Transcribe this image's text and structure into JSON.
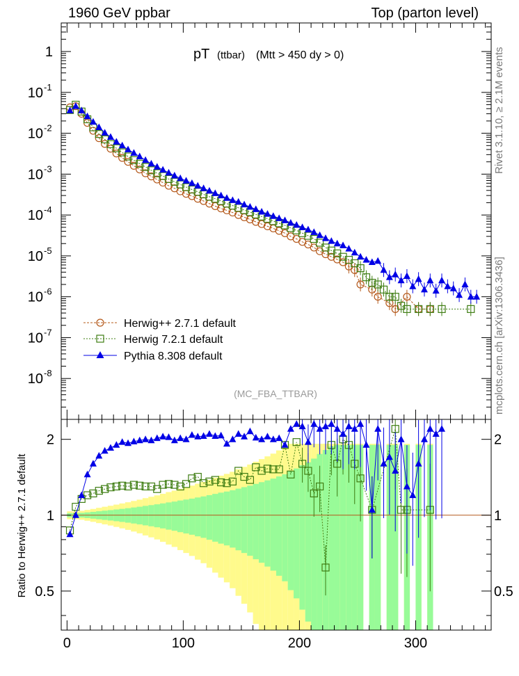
{
  "header": {
    "left": "1960 GeV ppbar",
    "right": "Top (parton level)"
  },
  "plot_title": {
    "main": "pT",
    "small": "(ttbar)",
    "cut": "(Mtt > 450 dy > 0)"
  },
  "analysis_tag": "(MC_FBA_TTBAR)",
  "side_labels": {
    "rivet": "Rivet 3.1.10, ≥ 2.1M events",
    "mcplots": "mcplots.cern.ch [arXiv:1306.3436]"
  },
  "ratio_ylabel": "Ratio to Herwig++ 2.7.1 default",
  "colors": {
    "herwigpp": "#b4581a",
    "herwig7": "#3e7d12",
    "pythia": "#0000e6",
    "band_inner": "#98fb98",
    "band_outer": "#fffa8c"
  },
  "chart_data": [
    {
      "type": "scatter",
      "panel": "main",
      "yscale": "log",
      "xlim": [
        -5,
        365
      ],
      "ylim": [
        1e-09,
        5
      ],
      "ytick_labels": [
        "1",
        "10^-1",
        "10^-2",
        "10^-3",
        "10^-4",
        "10^-5",
        "10^-6",
        "10^-7",
        "10^-8"
      ],
      "legend_placement": "bottom-left",
      "series": [
        {
          "name": "Herwig++ 2.7.1 default",
          "marker": "open-circle",
          "x": [
            2.5,
            7.5,
            12.5,
            17.5,
            22.5,
            27.5,
            32.5,
            37.5,
            42.5,
            47.5,
            52.5,
            57.5,
            62.5,
            67.5,
            72.5,
            77.5,
            82.5,
            87.5,
            92.5,
            97.5,
            102.5,
            107.5,
            112.5,
            117.5,
            122.5,
            127.5,
            132.5,
            137.5,
            142.5,
            147.5,
            152.5,
            157.5,
            162.5,
            167.5,
            172.5,
            177.5,
            182.5,
            187.5,
            192.5,
            197.5,
            202.5,
            207.5,
            212.5,
            217.5,
            222.5,
            227.5,
            232.5,
            237.5,
            242.5,
            247.5,
            252.5,
            262.5,
            267.5,
            277.5,
            282.5,
            292.5,
            302.5,
            312.5
          ],
          "y": [
            0.043,
            0.046,
            0.03,
            0.018,
            0.0115,
            0.0076,
            0.0055,
            0.0042,
            0.0032,
            0.0025,
            0.002,
            0.0016,
            0.0013,
            0.00105,
            0.00088,
            0.00074,
            0.00062,
            0.00052,
            0.00045,
            0.00038,
            0.00033,
            0.00029,
            0.00025,
            0.00022,
            0.00019,
            0.000165,
            0.000145,
            0.00013,
            0.000115,
            0.0001,
            8.8e-05,
            7.8e-05,
            6.8e-05,
            6e-05,
            5.3e-05,
            4.7e-05,
            4.1e-05,
            3.6e-05,
            3e-05,
            2.6e-05,
            2.2e-05,
            1.9e-05,
            1.6e-05,
            1.3e-05,
            1.1e-05,
            9.5e-06,
            8.2e-06,
            7e-06,
            5.5e-06,
            4.5e-06,
            2e-06,
            1.5e-06,
            1e-06,
            7e-07,
            5e-07,
            1e-06,
            5e-07,
            5e-07
          ]
        },
        {
          "name": "Herwig 7.2.1 default",
          "marker": "open-square",
          "x": [
            2.5,
            7.5,
            12.5,
            17.5,
            22.5,
            27.5,
            32.5,
            37.5,
            42.5,
            47.5,
            52.5,
            57.5,
            62.5,
            67.5,
            72.5,
            77.5,
            82.5,
            87.5,
            92.5,
            97.5,
            102.5,
            107.5,
            112.5,
            117.5,
            122.5,
            127.5,
            132.5,
            137.5,
            142.5,
            147.5,
            152.5,
            157.5,
            162.5,
            167.5,
            172.5,
            177.5,
            182.5,
            187.5,
            192.5,
            197.5,
            202.5,
            207.5,
            212.5,
            217.5,
            222.5,
            227.5,
            232.5,
            237.5,
            242.5,
            247.5,
            252.5,
            257.5,
            262.5,
            267.5,
            272.5,
            277.5,
            282.5,
            287.5,
            292.5,
            302.5,
            312.5,
            322.5,
            347.5
          ],
          "y": [
            0.037,
            0.05,
            0.034,
            0.022,
            0.014,
            0.0096,
            0.0071,
            0.0054,
            0.0043,
            0.0034,
            0.0027,
            0.0022,
            0.0018,
            0.0015,
            0.00124,
            0.00105,
            0.0009,
            0.00076,
            0.00065,
            0.00056,
            0.00048,
            0.00042,
            0.00037,
            0.00032,
            0.00028,
            0.00025,
            0.00022,
            0.00019,
            0.00017,
            0.00015,
            0.000132,
            0.000118,
            0.000103,
            9.2e-05,
            8.1e-05,
            7.1e-05,
            6.3e-05,
            5.6e-05,
            4.8e-05,
            4.2e-05,
            3.6e-05,
            3.1e-05,
            2.6e-05,
            2.1e-05,
            1.6e-05,
            1.35e-05,
            1.15e-05,
            9.5e-06,
            8e-06,
            6.6e-06,
            5e-06,
            3e-06,
            2.2e-06,
            2e-06,
            1.5e-06,
            1e-06,
            1e-06,
            6e-07,
            5e-07,
            5e-07,
            5e-07,
            5e-07,
            5e-07
          ]
        },
        {
          "name": "Pythia 8.308 default",
          "marker": "filled-triangle",
          "x": [
            2.5,
            7.5,
            12.5,
            17.5,
            22.5,
            27.5,
            32.5,
            37.5,
            42.5,
            47.5,
            52.5,
            57.5,
            62.5,
            67.5,
            72.5,
            77.5,
            82.5,
            87.5,
            92.5,
            97.5,
            102.5,
            107.5,
            112.5,
            117.5,
            122.5,
            127.5,
            132.5,
            137.5,
            142.5,
            147.5,
            152.5,
            157.5,
            162.5,
            167.5,
            172.5,
            177.5,
            182.5,
            187.5,
            192.5,
            197.5,
            202.5,
            207.5,
            212.5,
            217.5,
            222.5,
            227.5,
            232.5,
            237.5,
            242.5,
            247.5,
            252.5,
            257.5,
            262.5,
            267.5,
            272.5,
            277.5,
            282.5,
            287.5,
            292.5,
            297.5,
            302.5,
            307.5,
            312.5,
            317.5,
            322.5,
            327.5,
            332.5,
            337.5,
            342.5,
            347.5,
            352.5
          ],
          "y": [
            0.036,
            0.046,
            0.036,
            0.026,
            0.019,
            0.014,
            0.0103,
            0.0081,
            0.0062,
            0.005,
            0.004,
            0.0033,
            0.0027,
            0.0022,
            0.0018,
            0.00151,
            0.00128,
            0.00108,
            0.00092,
            0.00079,
            0.00069,
            0.0006,
            0.00052,
            0.00045,
            0.00039,
            0.00034,
            0.0003,
            0.00026,
            0.00023,
            0.00021,
            0.00018,
            0.000158,
            0.000138,
            0.00012,
            0.000106,
            9.4e-05,
            8.3e-05,
            7.4e-05,
            6.4e-05,
            5.7e-05,
            5e-05,
            4.4e-05,
            3.8e-05,
            3.2e-05,
            2.7e-05,
            2.3e-05,
            2e-05,
            1.8e-05,
            1.5e-05,
            1.2e-05,
            9.5e-06,
            8e-06,
            7e-06,
            7.5e-06,
            4.5e-06,
            3e-06,
            3.5e-06,
            2.5e-06,
            3.2e-06,
            1.8e-06,
            2.7e-06,
            1.5e-06,
            2.5e-06,
            1.4e-06,
            2.5e-06,
            1.8e-06,
            1.6e-06,
            1.1e-06,
            2e-06,
            1e-06,
            1e-06
          ]
        }
      ]
    },
    {
      "type": "line",
      "panel": "ratio",
      "ylabel": "Ratio to Herwig++ 2.7.1 default",
      "xlim": [
        -5,
        365
      ],
      "ylim": [
        0.35,
        2.4
      ],
      "yscale": "log",
      "xtick_labels": [
        "0",
        "100",
        "200",
        "300"
      ],
      "ytick_labels": [
        "0.5",
        "1",
        "2"
      ],
      "series": [
        {
          "name": "Herwig 7.2.1 default",
          "x": [
            2.5,
            7.5,
            12.5,
            17.5,
            22.5,
            27.5,
            32.5,
            37.5,
            42.5,
            47.5,
            52.5,
            57.5,
            62.5,
            67.5,
            72.5,
            77.5,
            82.5,
            87.5,
            92.5,
            97.5,
            102.5,
            107.5,
            112.5,
            117.5,
            122.5,
            127.5,
            132.5,
            137.5,
            142.5,
            147.5,
            152.5,
            157.5,
            162.5,
            167.5,
            172.5,
            177.5,
            182.5,
            187.5,
            192.5,
            197.5,
            202.5,
            207.5,
            212.5,
            217.5,
            222.5,
            227.5,
            232.5,
            237.5,
            242.5,
            247.5,
            252.5,
            262.5,
            282.5,
            287.5,
            292.5,
            312.5
          ],
          "y": [
            0.87,
            1.08,
            1.16,
            1.2,
            1.22,
            1.25,
            1.27,
            1.29,
            1.3,
            1.31,
            1.3,
            1.32,
            1.31,
            1.3,
            1.3,
            1.27,
            1.32,
            1.33,
            1.32,
            1.3,
            1.33,
            1.4,
            1.42,
            1.34,
            1.36,
            1.38,
            1.35,
            1.34,
            1.36,
            1.5,
            1.42,
            1.38,
            1.55,
            1.5,
            1.53,
            1.52,
            1.52,
            1.9,
            1.45,
            1.95,
            1.6,
            1.5,
            1.22,
            1.3,
            0.62,
            1.9,
            1.6,
            2.0,
            1.9,
            1.6,
            1.4,
            1.05,
            2.2,
            1.05,
            1.05,
            1.05
          ]
        },
        {
          "name": "Pythia 8.308 default",
          "x": [
            2.5,
            7.5,
            12.5,
            17.5,
            22.5,
            27.5,
            32.5,
            37.5,
            42.5,
            47.5,
            52.5,
            57.5,
            62.5,
            67.5,
            72.5,
            77.5,
            82.5,
            87.5,
            92.5,
            97.5,
            102.5,
            107.5,
            112.5,
            117.5,
            122.5,
            127.5,
            132.5,
            137.5,
            142.5,
            147.5,
            152.5,
            157.5,
            162.5,
            167.5,
            172.5,
            177.5,
            182.5,
            187.5,
            192.5,
            197.5,
            202.5,
            207.5,
            212.5,
            217.5,
            222.5,
            227.5,
            232.5,
            237.5,
            242.5,
            247.5,
            252.5,
            257.5,
            262.5,
            267.5,
            272.5,
            277.5,
            282.5,
            287.5,
            292.5,
            297.5,
            302.5,
            307.5,
            312.5,
            317.5,
            322.5
          ],
          "y": [
            0.84,
            1.0,
            1.2,
            1.45,
            1.6,
            1.72,
            1.8,
            1.85,
            1.9,
            1.95,
            1.93,
            1.96,
            1.98,
            2.0,
            1.98,
            2.02,
            2.05,
            2.04,
            1.98,
            2.02,
            2.0,
            2.08,
            2.05,
            2.06,
            2.1,
            2.06,
            2.07,
            1.92,
            2.0,
            2.1,
            2.05,
            2.15,
            2.03,
            2.0,
            2.05,
            2.0,
            2.02,
            1.9,
            2.2,
            2.3,
            2.25,
            1.95,
            2.3,
            2.2,
            2.25,
            2.3,
            2.2,
            2.1,
            2.25,
            2.2,
            2.3,
            1.9,
            1.05,
            2.2,
            1.6,
            1.7,
            1.5,
            2.0,
            1.3,
            1.2,
            1.6,
            2.0,
            2.2,
            2.1,
            2.2
          ]
        }
      ]
    }
  ]
}
